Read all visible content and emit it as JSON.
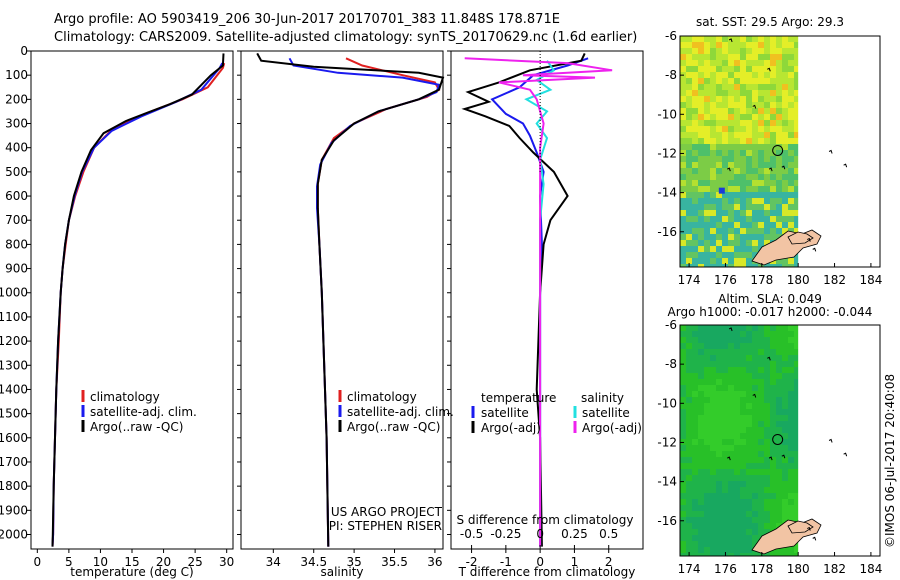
{
  "header": {
    "line1": "Argo profile: AO 5903419_206 30-Jun-2017 20170701_383 11.848S 178.871E",
    "line2": "Climatology: CARS2009. Satellite-adjusted climatology: synTS_20170629.nc (1.6d earlier)"
  },
  "colors": {
    "clim": "#e02020",
    "sat": "#1a1aee",
    "argo": "#000000",
    "sal_sat": "#22e0e0",
    "sal_argo": "#ee22ee"
  },
  "depth_ticks": [
    "0",
    "100",
    "200",
    "300",
    "400",
    "500",
    "600",
    "700",
    "800",
    "900",
    "1000",
    "1100",
    "1200",
    "1300",
    "1400",
    "1500",
    "1600",
    "1700",
    "1800",
    "1900",
    "2000"
  ],
  "chart_data": [
    {
      "type": "line",
      "xlabel": "temperature (deg C)",
      "xlim": [
        -1,
        31
      ],
      "ylim": [
        0,
        2060
      ],
      "x_ticks": [
        "0",
        "5",
        "10",
        "15",
        "20",
        "25",
        "30"
      ],
      "legend": [
        "climatology",
        "satellite-adj. clim.",
        "Argo(..raw -QC)"
      ],
      "series": [
        {
          "name": "climatology",
          "points": [
            [
              29.6,
              50
            ],
            [
              29.4,
              70
            ],
            [
              27,
              150
            ],
            [
              23,
              200
            ],
            [
              17,
              260
            ],
            [
              12,
              320
            ],
            [
              9,
              400
            ],
            [
              7.3,
              500
            ],
            [
              6,
              600
            ],
            [
              5,
              700
            ],
            [
              4.5,
              800
            ],
            [
              4,
              900
            ],
            [
              3.7,
              1000
            ],
            [
              3.4,
              1200
            ],
            [
              3,
              1400
            ],
            [
              2.8,
              1600
            ],
            [
              2.6,
              1800
            ],
            [
              2.5,
              2000
            ],
            [
              2.4,
              2050
            ]
          ]
        },
        {
          "name": "satellite-adj. clim.",
          "points": [
            [
              29.3,
              50
            ],
            [
              28.9,
              70
            ],
            [
              26,
              160
            ],
            [
              22,
              210
            ],
            [
              16.5,
              270
            ],
            [
              11.8,
              330
            ],
            [
              9,
              400
            ],
            [
              7.1,
              500
            ],
            [
              5.9,
              600
            ],
            [
              5,
              700
            ],
            [
              4.4,
              800
            ],
            [
              4,
              900
            ],
            [
              3.7,
              1000
            ],
            [
              3.3,
              1200
            ],
            [
              3,
              1400
            ],
            [
              2.8,
              1600
            ],
            [
              2.6,
              1800
            ],
            [
              2.5,
              2000
            ],
            [
              2.4,
              2050
            ]
          ]
        },
        {
          "name": "Argo(..raw -QC)",
          "points": [
            [
              29.5,
              10
            ],
            [
              29.4,
              60
            ],
            [
              27.5,
              100
            ],
            [
              24.5,
              180
            ],
            [
              21,
              220
            ],
            [
              17.5,
              255
            ],
            [
              14,
              290
            ],
            [
              10.5,
              340
            ],
            [
              8.5,
              410
            ],
            [
              7,
              500
            ],
            [
              5.8,
              600
            ],
            [
              5,
              700
            ],
            [
              4.4,
              800
            ],
            [
              4,
              900
            ],
            [
              3.7,
              1000
            ],
            [
              3.3,
              1200
            ],
            [
              3,
              1400
            ],
            [
              2.8,
              1600
            ],
            [
              2.6,
              1800
            ],
            [
              2.45,
              2000
            ],
            [
              2.4,
              2050
            ]
          ]
        }
      ]
    },
    {
      "type": "line",
      "xlabel": "salinity",
      "xlim": [
        33.6,
        36.1
      ],
      "ylim": [
        0,
        2060
      ],
      "x_ticks": [
        "34",
        "34.5",
        "35",
        "35.5",
        "36"
      ],
      "legend": [
        "climatology",
        "satellite-adj. clim.",
        "Argo(..raw -QC)"
      ],
      "annotation": [
        "US ARGO PROJECT",
        "PI: STEPHEN RISER"
      ],
      "series": [
        {
          "name": "climatology",
          "points": [
            [
              34.9,
              30
            ],
            [
              35.1,
              60
            ],
            [
              35.6,
              100
            ],
            [
              36,
              130
            ],
            [
              36.05,
              160
            ],
            [
              35.9,
              190
            ],
            [
              35.4,
              240
            ],
            [
              35,
              300
            ],
            [
              34.75,
              360
            ],
            [
              34.6,
              450
            ],
            [
              34.55,
              550
            ],
            [
              34.55,
              650
            ],
            [
              34.57,
              800
            ],
            [
              34.6,
              1000
            ],
            [
              34.63,
              1300
            ],
            [
              34.66,
              1600
            ],
            [
              34.68,
              2050
            ]
          ]
        },
        {
          "name": "satellite-adj. clim.",
          "points": [
            [
              34.2,
              30
            ],
            [
              34.25,
              60
            ],
            [
              34.8,
              90
            ],
            [
              35.6,
              110
            ],
            [
              36.05,
              140
            ],
            [
              36.02,
              170
            ],
            [
              35.8,
              200
            ],
            [
              35.3,
              250
            ],
            [
              34.95,
              310
            ],
            [
              34.72,
              380
            ],
            [
              34.58,
              470
            ],
            [
              34.54,
              560
            ],
            [
              34.54,
              650
            ],
            [
              34.57,
              800
            ],
            [
              34.6,
              1000
            ],
            [
              34.63,
              1300
            ],
            [
              34.66,
              1600
            ],
            [
              34.68,
              2050
            ]
          ]
        },
        {
          "name": "Argo(..raw -QC)",
          "points": [
            [
              33.8,
              10
            ],
            [
              33.85,
              40
            ],
            [
              34.5,
              65
            ],
            [
              35.8,
              90
            ],
            [
              36.1,
              110
            ],
            [
              36.05,
              160
            ],
            [
              35.8,
              200
            ],
            [
              35.3,
              250
            ],
            [
              35,
              300
            ],
            [
              34.75,
              370
            ],
            [
              34.6,
              450
            ],
            [
              34.55,
              550
            ],
            [
              34.55,
              650
            ],
            [
              34.57,
              800
            ],
            [
              34.6,
              1000
            ],
            [
              34.63,
              1300
            ],
            [
              34.66,
              1600
            ],
            [
              34.68,
              2050
            ]
          ]
        }
      ]
    },
    {
      "type": "line",
      "xlabel": "T difference from climatology",
      "xlabel_top": "S difference from climatology",
      "xlim": [
        -2.6,
        3
      ],
      "ylim": [
        0,
        2060
      ],
      "x_ticks": [
        "-2",
        "-1",
        "0",
        "1",
        "2"
      ],
      "x_ticks_top": [
        "-0.5",
        "-0.25",
        "0",
        "0.25",
        "0.5"
      ],
      "legend_left": {
        "title": "temperature",
        "items": [
          "satellite",
          "Argo(-adj)"
        ]
      },
      "legend_right": {
        "title": "salinity",
        "items": [
          "satellite",
          "Argo(-adj)"
        ]
      },
      "series": [
        {
          "name": "T satellite",
          "points": [
            [
              1.4,
              30
            ],
            [
              0.8,
              60
            ],
            [
              -0.2,
              100
            ],
            [
              -0.6,
              150
            ],
            [
              -1.4,
              200
            ],
            [
              -1,
              260
            ],
            [
              -0.5,
              300
            ],
            [
              -0.3,
              350
            ],
            [
              -0.1,
              420
            ],
            [
              0.1,
              500
            ],
            [
              0,
              600
            ],
            [
              0.05,
              800
            ],
            [
              0,
              1000
            ],
            [
              0,
              1500
            ],
            [
              0,
              2050
            ]
          ]
        },
        {
          "name": "T Argo(-adj)",
          "points": [
            [
              1.3,
              10
            ],
            [
              1.2,
              40
            ],
            [
              -0.3,
              80
            ],
            [
              -1.2,
              130
            ],
            [
              -2.1,
              170
            ],
            [
              -1.5,
              210
            ],
            [
              -2.2,
              240
            ],
            [
              -1.6,
              270
            ],
            [
              -0.9,
              310
            ],
            [
              -0.6,
              360
            ],
            [
              -0.2,
              420
            ],
            [
              0.4,
              500
            ],
            [
              0.8,
              600
            ],
            [
              0.3,
              700
            ],
            [
              0.1,
              800
            ],
            [
              0,
              1000
            ],
            [
              -0.1,
              1400
            ],
            [
              0,
              1600
            ],
            [
              0.05,
              2050
            ]
          ]
        },
        {
          "name": "S satellite",
          "points": [
            [
              0.2,
              40
            ],
            [
              0.4,
              80
            ],
            [
              -0.1,
              120
            ],
            [
              0.3,
              160
            ],
            [
              -0.4,
              200
            ],
            [
              0.2,
              250
            ],
            [
              -0.1,
              300
            ],
            [
              0.2,
              360
            ],
            [
              0,
              450
            ],
            [
              0.1,
              550
            ],
            [
              0,
              700
            ],
            [
              0,
              1000
            ],
            [
              0,
              1500
            ],
            [
              0,
              2050
            ]
          ]
        },
        {
          "name": "S Argo(-adj)",
          "points": [
            [
              -2.2,
              30
            ],
            [
              0.8,
              50
            ],
            [
              2.1,
              80
            ],
            [
              -0.5,
              100
            ],
            [
              1.6,
              110
            ],
            [
              -1.2,
              130
            ],
            [
              -0.3,
              160
            ],
            [
              -0.1,
              200
            ],
            [
              0.1,
              300
            ],
            [
              0,
              400
            ],
            [
              0,
              600
            ],
            [
              0,
              1000
            ],
            [
              0,
              2050
            ]
          ]
        }
      ]
    },
    {
      "type": "heatmap",
      "title": "sat. SST: 29.5 Argo: 29.3",
      "x_ticks": [
        "174",
        "176",
        "178",
        "180",
        "182",
        "184"
      ],
      "y_ticks": [
        "-6",
        "-8",
        "-10",
        "-12",
        "-14",
        "-16"
      ],
      "xlim": [
        173.5,
        184.5
      ],
      "ylim": [
        -17.8,
        -6
      ],
      "float_position": [
        178.871,
        -11.848
      ]
    },
    {
      "type": "heatmap",
      "title": "Altim. SLA: 0.049",
      "subtitle": "Argo h1000: -0.017 h2000: -0.044",
      "x_ticks": [
        "174",
        "176",
        "178",
        "180",
        "182",
        "184"
      ],
      "y_ticks": [
        "-6",
        "-8",
        "-10",
        "-12",
        "-14",
        "-16"
      ],
      "xlim": [
        173.5,
        184.5
      ],
      "ylim": [
        -17.8,
        -6
      ],
      "float_position": [
        178.871,
        -11.848
      ]
    }
  ],
  "credit": "©IMOS 06-Jul-2017 20:40:08"
}
